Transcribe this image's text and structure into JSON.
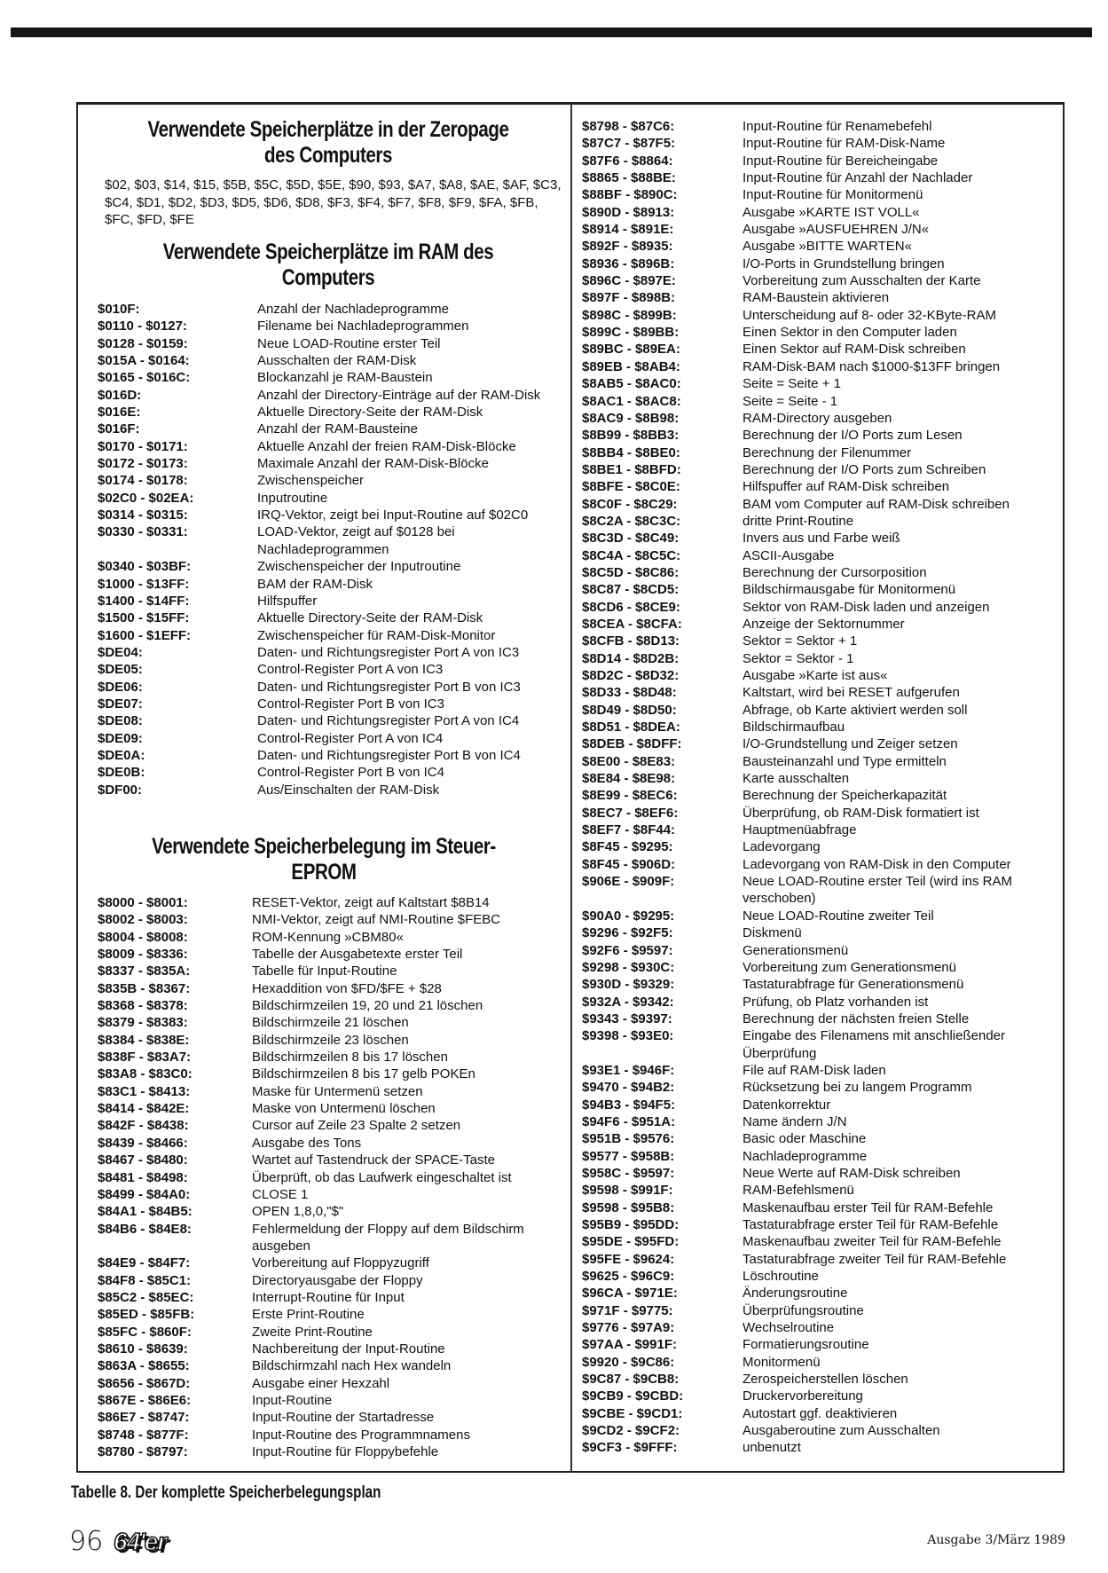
{
  "zeropage": {
    "title": "Verwendete Speicherplätze in der Zeropage des Computers",
    "text": "$02, $03, $14, $15, $5B, $5C, $5D, $5E, $90, $93, $A7, $A8, $AE, $AF, $C3, $C4, $D1, $D2, $D3, $D5, $D6, $D8, $F3, $F4, $F7, $F8, $F9, $FA, $FB, $FC, $FD, $FE"
  },
  "ram": {
    "title": "Verwendete Speicherplätze im RAM des Computers",
    "rows": [
      {
        "a": "$010F:",
        "d": "Anzahl der Nachladeprogramme"
      },
      {
        "a": "$0110 - $0127:",
        "d": "Filename bei Nachladeprogrammen"
      },
      {
        "a": "$0128 - $0159:",
        "d": "Neue LOAD-Routine erster Teil"
      },
      {
        "a": "$015A - $0164:",
        "d": "Ausschalten der RAM-Disk"
      },
      {
        "a": "$0165 - $016C:",
        "d": "Blockanzahl je RAM-Baustein"
      },
      {
        "a": "$016D:",
        "d": "Anzahl der Directory-Einträge auf der RAM-Disk"
      },
      {
        "a": "$016E:",
        "d": "Aktuelle Directory-Seite der RAM-Disk"
      },
      {
        "a": "$016F:",
        "d": "Anzahl der RAM-Bausteine"
      },
      {
        "a": "$0170 - $0171:",
        "d": "Aktuelle Anzahl der freien RAM-Disk-Blöcke"
      },
      {
        "a": "$0172 - $0173:",
        "d": "Maximale Anzahl der RAM-Disk-Blöcke"
      },
      {
        "a": "$0174 - $0178:",
        "d": "Zwischenspeicher"
      },
      {
        "a": "$02C0 - $02EA:",
        "d": "Inputroutine"
      },
      {
        "a": "$0314 - $0315:",
        "d": "IRQ-Vektor, zeigt bei Input-Routine auf $02C0"
      },
      {
        "a": "$0330 - $0331:",
        "d": "LOAD-Vektor, zeigt auf $0128 bei Nachladeprogrammen"
      },
      {
        "a": "$0340 - $03BF:",
        "d": "Zwischenspeicher der Inputroutine"
      },
      {
        "a": "$1000 - $13FF:",
        "d": "BAM der RAM-Disk"
      },
      {
        "a": "$1400 - $14FF:",
        "d": "Hilfspuffer"
      },
      {
        "a": "$1500 - $15FF:",
        "d": "Aktuelle Directory-Seite der RAM-Disk"
      },
      {
        "a": "$1600 - $1EFF:",
        "d": "Zwischenspeicher für RAM-Disk-Monitor"
      },
      {
        "a": "$DE04:",
        "d": "Daten- und Richtungsregister Port A von IC3"
      },
      {
        "a": "$DE05:",
        "d": "Control-Register Port A von IC3"
      },
      {
        "a": "$DE06:",
        "d": "Daten- und Richtungsregister Port B von IC3"
      },
      {
        "a": "$DE07:",
        "d": "Control-Register Port B von IC3"
      },
      {
        "a": "$DE08:",
        "d": "Daten- und Richtungsregister Port A von IC4"
      },
      {
        "a": "$DE09:",
        "d": "Control-Register Port A von IC4"
      },
      {
        "a": "$DE0A:",
        "d": "Daten- und Richtungsregister Port B von IC4"
      },
      {
        "a": "$DE0B:",
        "d": "Control-Register Port B von IC4"
      },
      {
        "a": "$DF00:",
        "d": "Aus/Einschalten der RAM-Disk"
      }
    ]
  },
  "eprom": {
    "title": "Verwendete Speicherbelegung im Steuer-EPROM",
    "rows": [
      {
        "a": "$8000 - $8001:",
        "d": "RESET-Vektor, zeigt auf Kaltstart $8B14"
      },
      {
        "a": "$8002 - $8003:",
        "d": "NMI-Vektor, zeigt auf NMI-Routine $FEBC"
      },
      {
        "a": "$8004 - $8008:",
        "d": "ROM-Kennung »CBM80«"
      },
      {
        "a": "$8009 - $8336:",
        "d": "Tabelle der Ausgabetexte erster Teil"
      },
      {
        "a": "$8337 - $835A:",
        "d": "Tabelle für Input-Routine"
      },
      {
        "a": "$835B - $8367:",
        "d": "Hexaddition von $FD/$FE + $28"
      },
      {
        "a": "$8368 - $8378:",
        "d": "Bildschirmzeilen 19, 20 und 21 löschen"
      },
      {
        "a": "$8379 - $8383:",
        "d": "Bildschirmzeile 21 löschen"
      },
      {
        "a": "$8384 - $838E:",
        "d": "Bildschirmzeile 23 löschen"
      },
      {
        "a": "$838F - $83A7:",
        "d": "Bildschirmzeilen 8 bis 17 löschen"
      },
      {
        "a": "$83A8 - $83C0:",
        "d": "Bildschirmzeilen 8 bis 17 gelb POKEn"
      },
      {
        "a": "$83C1 - $8413:",
        "d": "Maske für Untermenü setzen"
      },
      {
        "a": "$8414 - $842E:",
        "d": "Maske von Untermenü löschen"
      },
      {
        "a": "$842F - $8438:",
        "d": "Cursor auf Zeile 23 Spalte 2 setzen"
      },
      {
        "a": "$8439 - $8466:",
        "d": "Ausgabe des Tons"
      },
      {
        "a": "$8467 - $8480:",
        "d": "Wartet auf Tastendruck der SPACE-Taste"
      },
      {
        "a": "$8481 - $8498:",
        "d": "Überprüft, ob das Laufwerk eingeschaltet ist"
      },
      {
        "a": "$8499 - $84A0:",
        "d": "CLOSE 1"
      },
      {
        "a": "$84A1 - $84B5:",
        "d": "OPEN 1,8,0,\"$\""
      },
      {
        "a": "$84B6 - $84E8:",
        "d": "Fehlermeldung der Floppy auf dem Bildschirm ausgeben"
      },
      {
        "a": "$84E9 - $84F7:",
        "d": "Vorbereitung auf Floppyzugriff"
      },
      {
        "a": "$84F8 - $85C1:",
        "d": "Directoryausgabe der Floppy"
      },
      {
        "a": "$85C2 - $85EC:",
        "d": "Interrupt-Routine für Input"
      },
      {
        "a": "$85ED - $85FB:",
        "d": "Erste Print-Routine"
      },
      {
        "a": "$85FC - $860F:",
        "d": "Zweite Print-Routine"
      },
      {
        "a": "$8610 - $8639:",
        "d": "Nachbereitung der Input-Routine"
      },
      {
        "a": "$863A - $8655:",
        "d": "Bildschirmzahl nach Hex wandeln"
      },
      {
        "a": "$8656 - $867D:",
        "d": "Ausgabe einer Hexzahl"
      },
      {
        "a": "$867E - $86E6:",
        "d": "Input-Routine"
      },
      {
        "a": "$86E7 - $8747:",
        "d": "Input-Routine der Startadresse"
      },
      {
        "a": "$8748 - $877F:",
        "d": "Input-Routine des Programmnamens"
      },
      {
        "a": "$8780 - $8797:",
        "d": "Input-Routine für Floppybefehle"
      }
    ]
  },
  "right": {
    "rows": [
      {
        "a": "$8798 - $87C6:",
        "d": "Input-Routine für Renamebefehl"
      },
      {
        "a": "$87C7 - $87F5:",
        "d": "Input-Routine für RAM-Disk-Name"
      },
      {
        "a": "$87F6 - $8864:",
        "d": "Input-Routine für Bereicheingabe"
      },
      {
        "a": "$8865 - $88BE:",
        "d": "Input-Routine für Anzahl der Nachlader"
      },
      {
        "a": "$88BF - $890C:",
        "d": "Input-Routine für Monitormenü"
      },
      {
        "a": "$890D - $8913:",
        "d": "Ausgabe »KARTE IST VOLL«"
      },
      {
        "a": "$8914 - $891E:",
        "d": "Ausgabe »AUSFUEHREN J/N«"
      },
      {
        "a": "$892F - $8935:",
        "d": "Ausgabe »BITTE WARTEN«"
      },
      {
        "a": "$8936 - $896B:",
        "d": "I/O-Ports in Grundstellung bringen"
      },
      {
        "a": "$896C - $897E:",
        "d": "Vorbereitung zum Ausschalten der Karte"
      },
      {
        "a": "$897F - $898B:",
        "d": "RAM-Baustein aktivieren"
      },
      {
        "a": "$898C - $899B:",
        "d": "Unterscheidung auf 8- oder 32-KByte-RAM"
      },
      {
        "a": "$899C - $89BB:",
        "d": "Einen Sektor in den Computer laden"
      },
      {
        "a": "$89BC - $89EA:",
        "d": "Einen Sektor auf RAM-Disk schreiben"
      },
      {
        "a": "$89EB - $8AB4:",
        "d": "RAM-Disk-BAM nach $1000-$13FF bringen"
      },
      {
        "a": "$8AB5 - $8AC0:",
        "d": "Seite = Seite + 1"
      },
      {
        "a": "$8AC1 - $8AC8:",
        "d": "Seite = Seite - 1"
      },
      {
        "a": "$8AC9 - $8B98:",
        "d": "RAM-Directory ausgeben"
      },
      {
        "a": "$8B99 - $8BB3:",
        "d": "Berechnung der I/O Ports zum Lesen"
      },
      {
        "a": "$8BB4 - $8BE0:",
        "d": "Berechnung der Filenummer"
      },
      {
        "a": "$8BE1 - $8BFD:",
        "d": "Berechnung der I/O Ports zum Schreiben"
      },
      {
        "a": "$8BFE - $8C0E:",
        "d": "Hilfspuffer auf RAM-Disk schreiben"
      },
      {
        "a": "$8C0F - $8C29:",
        "d": "BAM vom Computer auf RAM-Disk schreiben"
      },
      {
        "a": "$8C2A - $8C3C:",
        "d": "dritte Print-Routine"
      },
      {
        "a": "$8C3D - $8C49:",
        "d": "Invers aus und Farbe weiß"
      },
      {
        "a": "$8C4A - $8C5C:",
        "d": "ASCII-Ausgabe"
      },
      {
        "a": "$8C5D - $8C86:",
        "d": "Berechnung der Cursorposition"
      },
      {
        "a": "$8C87 - $8CD5:",
        "d": "Bildschirmausgabe für Monitormenü"
      },
      {
        "a": "$8CD6 - $8CE9:",
        "d": "Sektor von RAM-Disk laden und anzeigen"
      },
      {
        "a": "$8CEA - $8CFA:",
        "d": "Anzeige der Sektornummer"
      },
      {
        "a": "$8CFB - $8D13:",
        "d": "Sektor = Sektor + 1"
      },
      {
        "a": "$8D14 - $8D2B:",
        "d": "Sektor = Sektor - 1"
      },
      {
        "a": "$8D2C - $8D32:",
        "d": "Ausgabe »Karte ist aus«"
      },
      {
        "a": "$8D33 - $8D48:",
        "d": "Kaltstart, wird bei RESET aufgerufen"
      },
      {
        "a": "$8D49 - $8D50:",
        "d": "Abfrage, ob Karte aktiviert werden soll"
      },
      {
        "a": "$8D51 - $8DEA:",
        "d": "Bildschirmaufbau"
      },
      {
        "a": "$8DEB - $8DFF:",
        "d": "I/O-Grundstellung und Zeiger setzen"
      },
      {
        "a": "$8E00 - $8E83:",
        "d": "Bausteinanzahl und Type ermitteln"
      },
      {
        "a": "$8E84 - $8E98:",
        "d": "Karte ausschalten"
      },
      {
        "a": "$8E99 - $8EC6:",
        "d": "Berechnung der Speicherkapazität"
      },
      {
        "a": "$8EC7 - $8EF6:",
        "d": "Überprüfung, ob RAM-Disk formatiert ist"
      },
      {
        "a": "$8EF7 - $8F44:",
        "d": "Hauptmenüabfrage"
      },
      {
        "a": "$8F45 - $9295:",
        "d": "Ladevorgang"
      },
      {
        "a": "$8F45 - $906D:",
        "d": "Ladevorgang von RAM-Disk in den Computer"
      },
      {
        "a": "$906E - $909F:",
        "d": "Neue LOAD-Routine erster Teil (wird ins RAM verschoben)"
      },
      {
        "a": "$90A0 - $9295:",
        "d": "Neue LOAD-Routine zweiter Teil"
      },
      {
        "a": "$9296 - $92F5:",
        "d": "Diskmenü"
      },
      {
        "a": "$92F6 - $9597:",
        "d": "Generationsmenü"
      },
      {
        "a": "$9298 - $930C:",
        "d": "Vorbereitung zum Generationsmenü"
      },
      {
        "a": "$930D - $9329:",
        "d": "Tastaturabfrage für Generationsmenü"
      },
      {
        "a": "$932A - $9342:",
        "d": "Prüfung, ob Platz vorhanden ist"
      },
      {
        "a": "$9343 - $9397:",
        "d": "Berechnung der nächsten freien Stelle"
      },
      {
        "a": "$9398 - $93E0:",
        "d": "Eingabe des Filenamens mit anschließender Überprüfung"
      },
      {
        "a": "$93E1 - $946F:",
        "d": "File auf RAM-Disk laden"
      },
      {
        "a": "$9470 - $94B2:",
        "d": "Rücksetzung bei zu langem Programm"
      },
      {
        "a": "$94B3 - $94F5:",
        "d": "Datenkorrektur"
      },
      {
        "a": "$94F6 - $951A:",
        "d": "Name ändern J/N"
      },
      {
        "a": "$951B - $9576:",
        "d": "Basic oder Maschine"
      },
      {
        "a": "$9577 - $958B:",
        "d": "Nachladeprogramme"
      },
      {
        "a": "$958C - $9597:",
        "d": "Neue Werte auf RAM-Disk schreiben"
      },
      {
        "a": "$9598 - $991F:",
        "d": "RAM-Befehlsmenü"
      },
      {
        "a": "$9598 - $95B8:",
        "d": "Maskenaufbau erster Teil für RAM-Befehle"
      },
      {
        "a": "$95B9 - $95DD:",
        "d": "Tastaturabfrage erster Teil für RAM-Befehle"
      },
      {
        "a": "$95DE - $95FD:",
        "d": "Maskenaufbau zweiter Teil für RAM-Befehle"
      },
      {
        "a": "$95FE - $9624:",
        "d": "Tastaturabfrage zweiter Teil für RAM-Befehle"
      },
      {
        "a": "$9625 - $96C9:",
        "d": "Löschroutine"
      },
      {
        "a": "$96CA - $971E:",
        "d": "Änderungsroutine"
      },
      {
        "a": "$971F - $9775:",
        "d": "Überprüfungsroutine"
      },
      {
        "a": "$9776 - $97A9:",
        "d": "Wechselroutine"
      },
      {
        "a": "$97AA - $991F:",
        "d": "Formatierungsroutine"
      },
      {
        "a": "$9920 - $9C86:",
        "d": "Monitormenü"
      },
      {
        "a": "$9C87 - $9CB8:",
        "d": "Zerospeicherstellen löschen"
      },
      {
        "a": "$9CB9 - $9CBD:",
        "d": "Druckervorbereitung"
      },
      {
        "a": "$9CBE - $9CD1:",
        "d": "Autostart ggf. deaktivieren"
      },
      {
        "a": "$9CD2 - $9CF2:",
        "d": "Ausgaberoutine zum Ausschalten"
      },
      {
        "a": "$9CF3 - $9FFF:",
        "d": "unbenutzt"
      }
    ]
  },
  "footer": {
    "caption": "Tabelle 8. Der komplette Speicherbelegungsplan",
    "page_number": "96",
    "logo": "64'er",
    "issue": "Ausgabe 3/März 1989"
  }
}
